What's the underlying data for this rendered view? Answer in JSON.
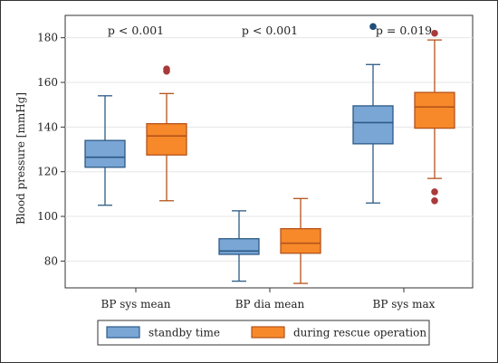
{
  "chart_data": {
    "type": "box",
    "title": "",
    "xlabel": "",
    "ylabel": "Blood pressure [mmHg]",
    "ylim": [
      68,
      190
    ],
    "yticks": [
      80,
      100,
      120,
      140,
      160,
      180
    ],
    "grid": true,
    "legend_position": "bottom",
    "categories": [
      "BP sys mean",
      "BP dia mean",
      "BP sys max"
    ],
    "annotations": [
      {
        "category": "BP sys mean",
        "text": "p < 0.001"
      },
      {
        "category": "BP dia mean",
        "text": "p < 0.001"
      },
      {
        "category": "BP sys max",
        "text": "p = 0.019"
      }
    ],
    "series": [
      {
        "name": "standby time",
        "color": "#7aa6d6",
        "edge": "#2c5a85",
        "boxes": [
          {
            "whisker_low": 105,
            "q1": 122,
            "median": 126.5,
            "q3": 134,
            "whisker_high": 154,
            "outliers": []
          },
          {
            "whisker_low": 71,
            "q1": 83,
            "median": 84.5,
            "q3": 90,
            "whisker_high": 102.5,
            "outliers": []
          },
          {
            "whisker_low": 106,
            "q1": 132.5,
            "median": 142,
            "q3": 149.5,
            "whisker_high": 168,
            "outliers": [
              185
            ]
          }
        ]
      },
      {
        "name": "during rescue operation",
        "color": "#f7892a",
        "edge": "#b5531a",
        "boxes": [
          {
            "whisker_low": 107,
            "q1": 127.5,
            "median": 136,
            "q3": 141.5,
            "whisker_high": 155,
            "outliers": [
              165,
              166
            ]
          },
          {
            "whisker_low": 70,
            "q1": 83.5,
            "median": 88,
            "q3": 94.5,
            "whisker_high": 108,
            "outliers": []
          },
          {
            "whisker_low": 117,
            "q1": 139.5,
            "median": 149,
            "q3": 155.5,
            "whisker_high": 179,
            "outliers": [
              182,
              111,
              107
            ]
          }
        ]
      }
    ],
    "colors": {
      "outlier_standby": "#1f4e79",
      "outlier_rescue": "#a83a3a"
    }
  }
}
